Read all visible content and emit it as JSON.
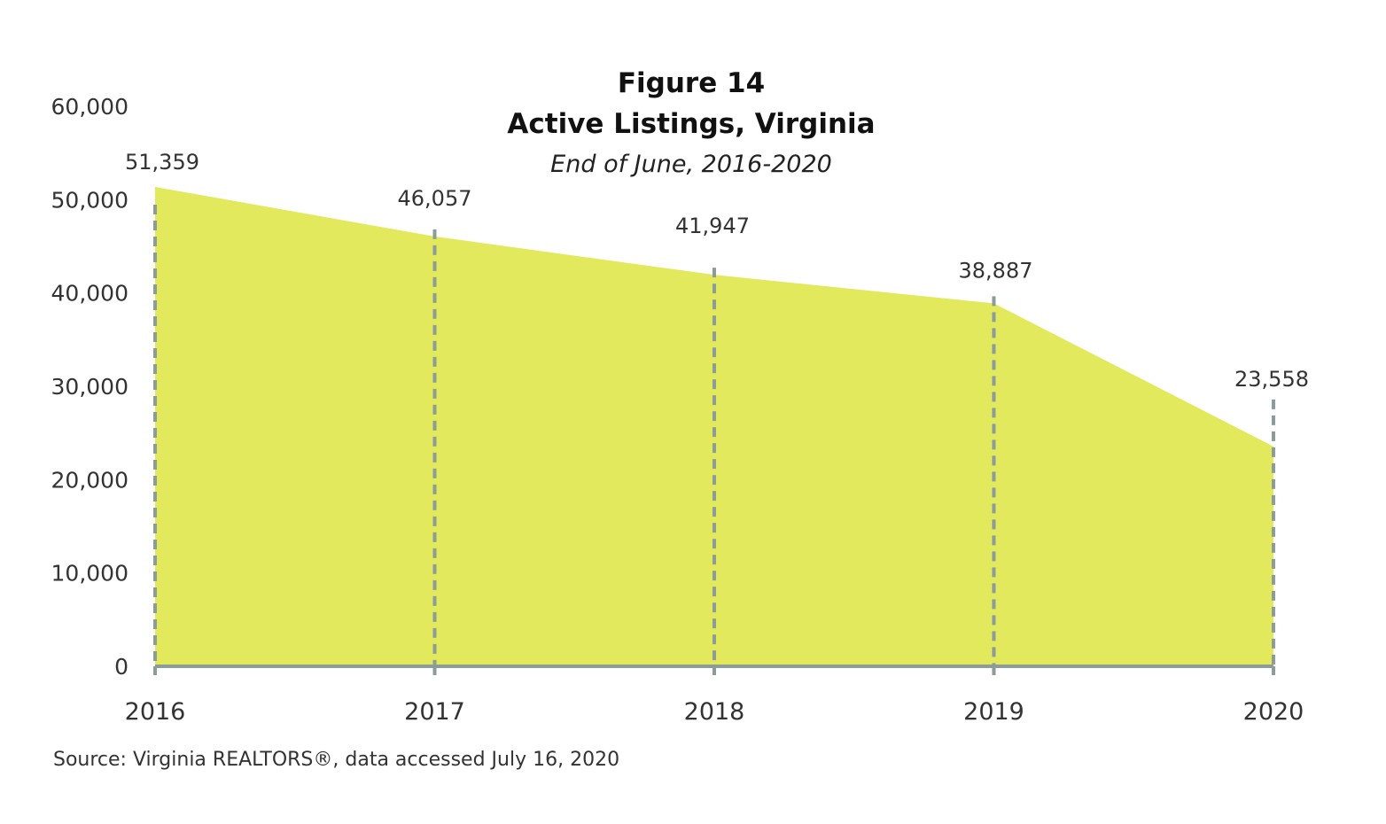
{
  "colors": {
    "area_fill": "#e3e95c",
    "guide_line": "#8c9c98",
    "axis_line": "#8c9c98"
  },
  "chart_data": {
    "type": "area",
    "figure_label": "Figure 14",
    "title": "Active Listings, Virginia",
    "subtitle": "End of June, 2016-2020",
    "categories": [
      "2016",
      "2017",
      "2018",
      "2019",
      "2020"
    ],
    "series": [
      {
        "values": [
          51359,
          46057,
          41947,
          38887,
          23558
        ],
        "data_labels": [
          "51,359",
          "46,057",
          "41,947",
          "38,887",
          "23,558"
        ]
      }
    ],
    "y_ticks": [
      0,
      10000,
      20000,
      30000,
      40000,
      50000,
      60000
    ],
    "y_tick_labels": [
      "0",
      "10,000",
      "20,000",
      "30,000",
      "40,000",
      "50,000",
      "60,000"
    ],
    "ylim": [
      0,
      60000
    ],
    "xlabel": "",
    "ylabel": "",
    "grid": false,
    "legend": "none",
    "source": "Source: Virginia REALTORS®, data accessed July 16, 2020"
  }
}
